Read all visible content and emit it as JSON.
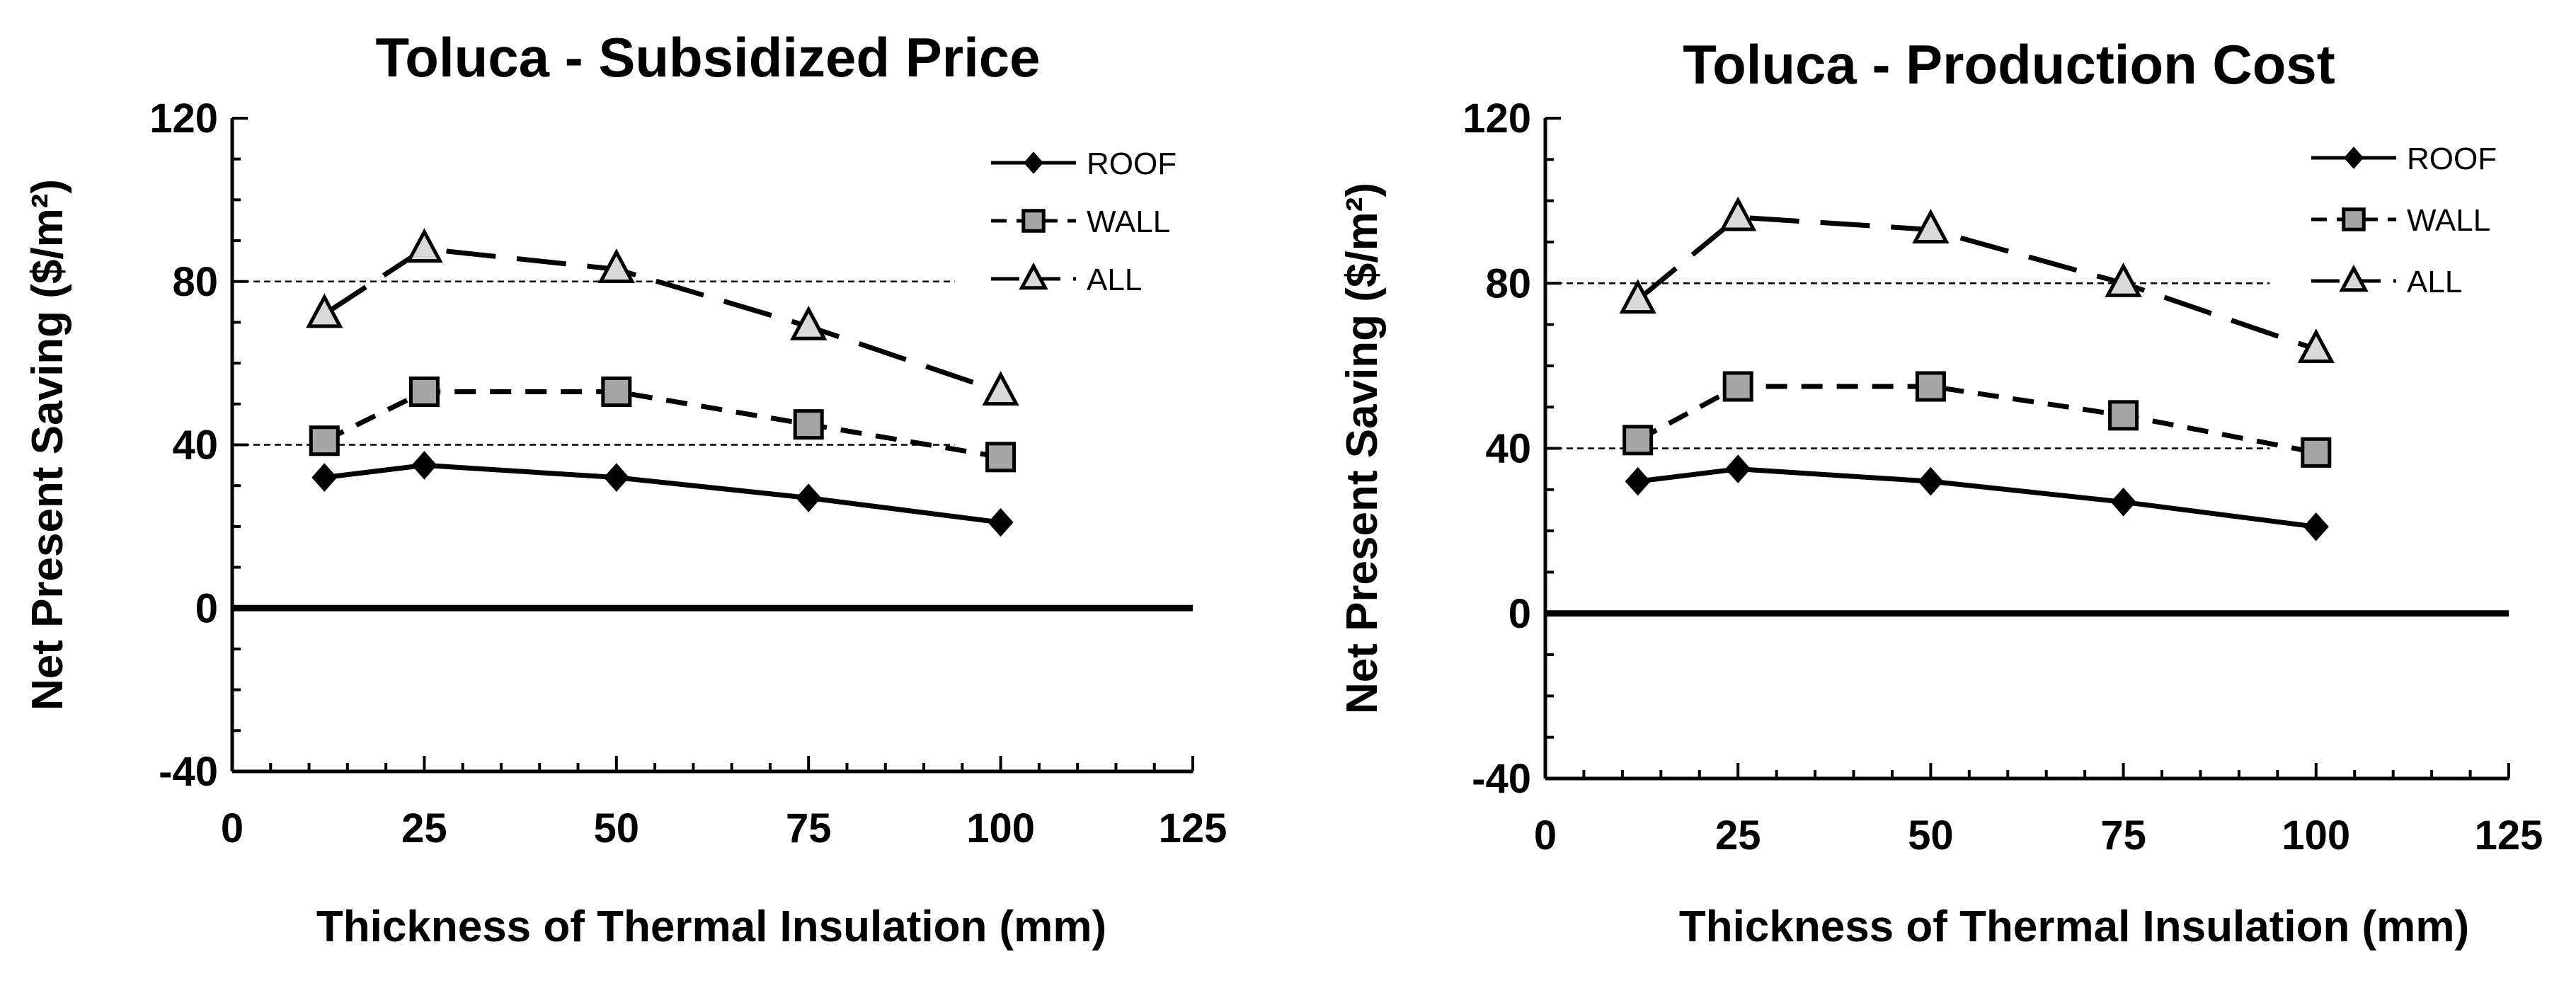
{
  "chart_data": [
    {
      "type": "line",
      "title": "Toluca - Subsidized Price",
      "xlabel": "Thickness of Thermal Insulation  (mm)",
      "ylabel": "Net Present Saving  ($/m²)",
      "xlim": [
        0,
        125
      ],
      "ylim": [
        -40,
        120
      ],
      "xticks": [
        0,
        25,
        50,
        75,
        100,
        125
      ],
      "yticks": [
        -40,
        0,
        40,
        80,
        120
      ],
      "x": [
        12,
        25,
        50,
        75,
        100
      ],
      "series": [
        {
          "name": "ROOF",
          "values": [
            32,
            35,
            32,
            27,
            21
          ]
        },
        {
          "name": "WALL",
          "values": [
            41,
            53,
            53,
            45,
            37
          ]
        },
        {
          "name": "ALL",
          "values": [
            72,
            88,
            83,
            69,
            53
          ]
        }
      ]
    },
    {
      "type": "line",
      "title": "Toluca - Production Cost",
      "xlabel": "Thickness of Thermal Insulation  (mm)",
      "ylabel": "Net Present Saving  ($/m²)",
      "xlim": [
        0,
        125
      ],
      "ylim": [
        -40,
        120
      ],
      "xticks": [
        0,
        25,
        50,
        75,
        100,
        125
      ],
      "yticks": [
        -40,
        0,
        40,
        80,
        120
      ],
      "x": [
        12,
        25,
        50,
        75,
        100
      ],
      "series": [
        {
          "name": "ROOF",
          "values": [
            32,
            35,
            32,
            27,
            21
          ]
        },
        {
          "name": "WALL",
          "values": [
            42,
            55,
            55,
            48,
            39
          ]
        },
        {
          "name": "ALL",
          "values": [
            76,
            96,
            93,
            80,
            64
          ]
        }
      ]
    }
  ]
}
